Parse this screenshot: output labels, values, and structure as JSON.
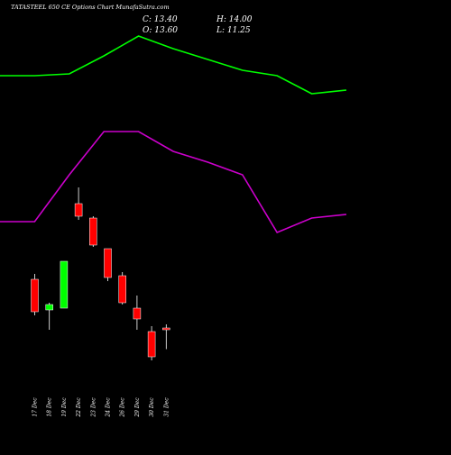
{
  "header": {
    "title": "TATASTEEL 650  CE Options  Chart MunafaSutra.com",
    "close_text": "C: 13.40",
    "open_text": "O: 13.60",
    "high_text": "H: 14.00",
    "low_text": "L: 11.25"
  },
  "chart_data": {
    "type": "candlestick",
    "title": "TATASTEEL 650  CE Options  Chart MunafaSutra.com",
    "categories": [
      "17 Dec",
      "18 Dec",
      "19 Dec",
      "22 Dec",
      "23 Dec",
      "24 Dec",
      "26 Dec",
      "29 Dec",
      "30 Dec",
      "31 Dec"
    ],
    "candles": [
      {
        "date": "17 Dec",
        "open": 19.0,
        "high": 19.6,
        "low": 15.0,
        "close": 15.4
      },
      {
        "date": "18 Dec",
        "open": 15.6,
        "high": 16.4,
        "low": 13.4,
        "close": 16.2
      },
      {
        "date": "19 Dec",
        "open": 15.8,
        "high": 21.0,
        "low": 15.8,
        "close": 21.0
      },
      {
        "date": "22 Dec",
        "open": 27.4,
        "high": 29.2,
        "low": 25.6,
        "close": 26.0
      },
      {
        "date": "23 Dec",
        "open": 25.8,
        "high": 26.0,
        "low": 22.6,
        "close": 22.8
      },
      {
        "date": "24 Dec",
        "open": 22.4,
        "high": 22.4,
        "low": 18.8,
        "close": 19.2
      },
      {
        "date": "26 Dec",
        "open": 19.4,
        "high": 19.8,
        "low": 16.2,
        "close": 16.4
      },
      {
        "date": "29 Dec",
        "open": 15.8,
        "high": 17.2,
        "low": 13.4,
        "close": 14.6
      },
      {
        "date": "30 Dec",
        "open": 13.2,
        "high": 13.8,
        "low": 10.0,
        "close": 10.4
      },
      {
        "date": "31 Dec",
        "open": 13.6,
        "high": 14.0,
        "low": 11.25,
        "close": 13.4
      }
    ],
    "overlays": [
      {
        "color": "#00ff00",
        "values": [
          41.6,
          41.6,
          41.8,
          43.8,
          46.0,
          44.6,
          43.4,
          42.2,
          41.6,
          39.6,
          40.0
        ]
      },
      {
        "color": "#cc00cc",
        "values": [
          25.4,
          25.4,
          30.6,
          35.4,
          35.4,
          33.2,
          32.0,
          30.6,
          24.2,
          25.8,
          26.2
        ]
      }
    ],
    "ylim": [
      0,
      50
    ],
    "grid": false,
    "up_color": "#00ff00",
    "down_color": "#ff0000"
  }
}
